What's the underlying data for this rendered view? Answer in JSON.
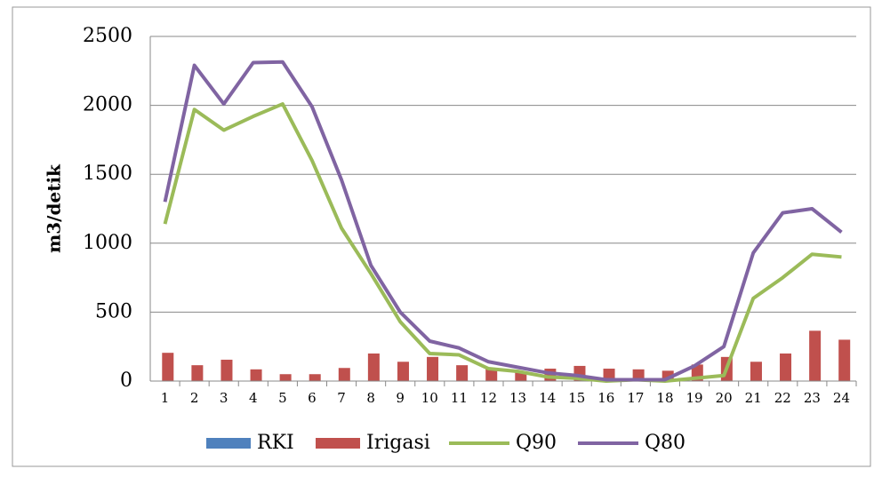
{
  "chart_data": {
    "type": "bar_line",
    "ylabel": "m3/detik",
    "categories": [
      "1",
      "2",
      "3",
      "4",
      "5",
      "6",
      "7",
      "8",
      "9",
      "10",
      "11",
      "12",
      "13",
      "14",
      "15",
      "16",
      "17",
      "18",
      "19",
      "20",
      "21",
      "22",
      "23",
      "24"
    ],
    "series": [
      {
        "name": "RKI",
        "type": "bar",
        "color": "#4f81bd",
        "values": [
          0,
          0,
          0,
          0,
          0,
          0,
          0,
          0,
          0,
          0,
          0,
          0,
          0,
          0,
          0,
          0,
          0,
          0,
          0,
          0,
          0,
          0,
          0,
          0
        ]
      },
      {
        "name": "Irigasi",
        "type": "bar",
        "color": "#c0504d",
        "values": [
          205,
          115,
          155,
          85,
          50,
          50,
          95,
          200,
          140,
          175,
          115,
          95,
          70,
          90,
          110,
          90,
          85,
          75,
          120,
          175,
          140,
          200,
          365,
          300
        ]
      },
      {
        "name": "Q90",
        "type": "line",
        "color": "#9bbb59",
        "values": [
          1140,
          1970,
          1820,
          1920,
          2010,
          1600,
          1110,
          780,
          430,
          200,
          190,
          90,
          70,
          30,
          20,
          0,
          10,
          0,
          20,
          40,
          600,
          750,
          920,
          900
        ]
      },
      {
        "name": "Q80",
        "type": "line",
        "color": "#8064a2",
        "values": [
          1300,
          2290,
          2010,
          2310,
          2315,
          1990,
          1460,
          840,
          500,
          290,
          240,
          140,
          100,
          60,
          40,
          10,
          10,
          10,
          110,
          250,
          930,
          1220,
          1250,
          1080
        ]
      }
    ],
    "ylim": [
      0,
      2500
    ],
    "yticks": [
      0,
      500,
      1000,
      1500,
      2000,
      2500
    ],
    "grid": true,
    "legend": "bottom"
  }
}
